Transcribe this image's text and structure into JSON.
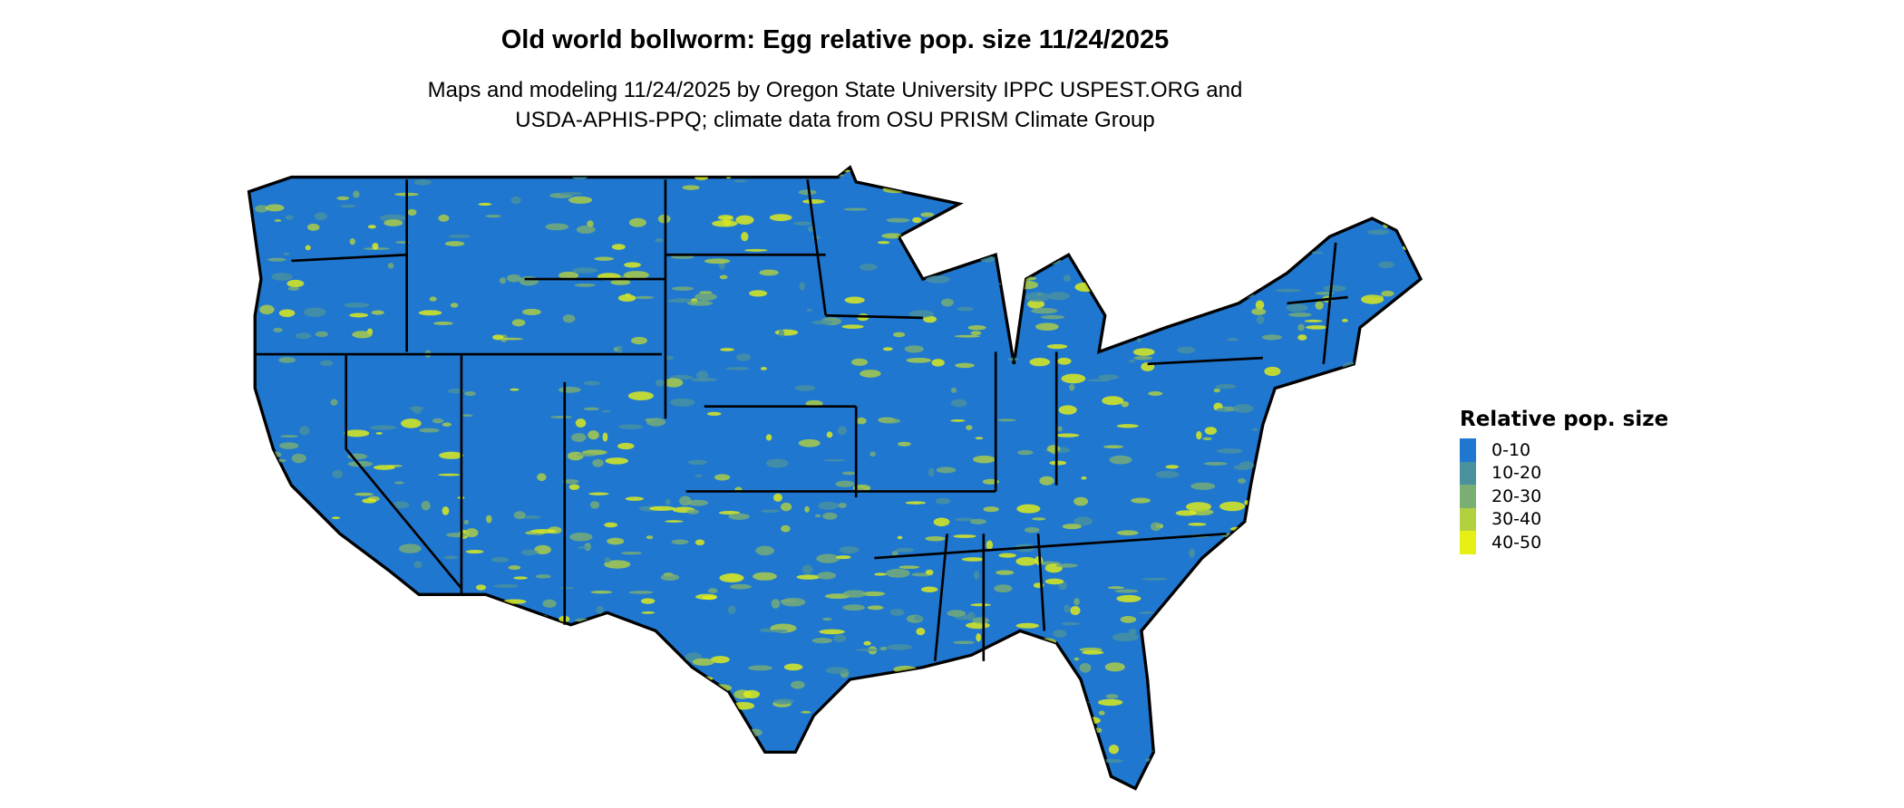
{
  "title": "Old world bollworm: Egg relative pop. size 11/24/2025",
  "subtitle_line1": "Maps and modeling 11/24/2025 by Oregon State University IPPC USPEST.ORG and",
  "subtitle_line2": "USDA-APHIS-PPQ; climate data from OSU PRISM Climate Group",
  "map": {
    "region": "Contiguous United States",
    "base_color": "#1f77d0",
    "border_color": "#000000"
  },
  "legend": {
    "title": "Relative pop. size",
    "items": [
      {
        "label": "0-10",
        "color": "#1f77d0"
      },
      {
        "label": "10-20",
        "color": "#4a919e"
      },
      {
        "label": "20-30",
        "color": "#7bae73"
      },
      {
        "label": "30-40",
        "color": "#b3d13f"
      },
      {
        "label": "40-50",
        "color": "#e6f014"
      }
    ]
  }
}
